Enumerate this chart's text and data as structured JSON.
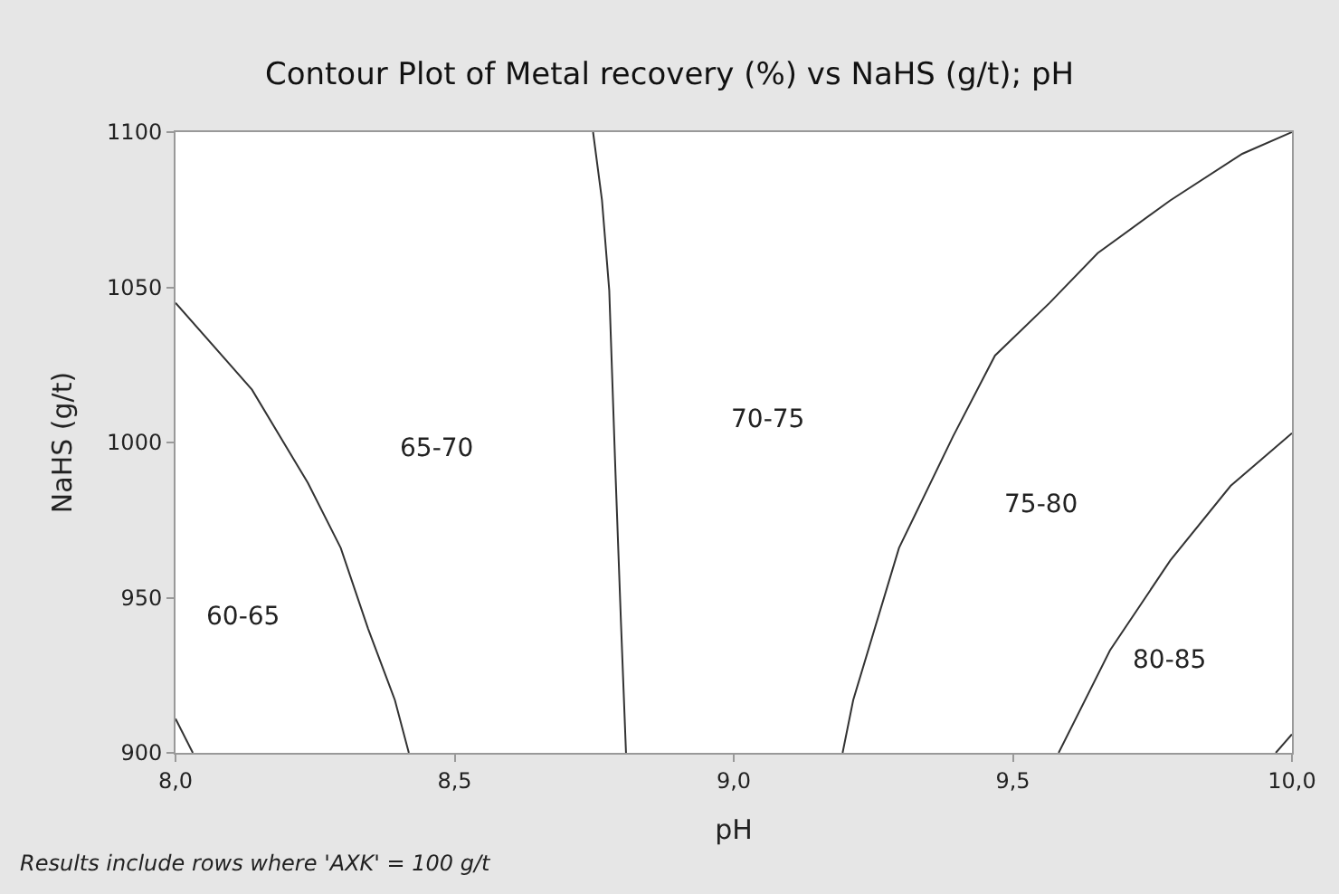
{
  "chart_data": {
    "type": "line",
    "title": "Contour Plot of Metal recovery (%) vs NaHS (g/t); pH",
    "xlabel": "pH",
    "ylabel": "NaHS (g/t)",
    "xlim": [
      8,
      10
    ],
    "ylim": [
      900,
      1100
    ],
    "xticks": [
      {
        "value": 8,
        "label": "8,0"
      },
      {
        "value": 8.5,
        "label": "8,5"
      },
      {
        "value": 9,
        "label": "9,0"
      },
      {
        "value": 9.5,
        "label": "9,5"
      },
      {
        "value": 10,
        "label": "10,0"
      }
    ],
    "yticks": [
      900,
      950,
      1000,
      1050,
      1100
    ],
    "marker": "none",
    "line_style": "solid",
    "series": [
      {
        "color": "#333333",
        "x": [
          8.0,
          8.031
        ],
        "values": [
          911,
          900
        ]
      },
      {
        "color": "#333333",
        "x": [
          8.0,
          8.137,
          8.237,
          8.296,
          8.345,
          8.393,
          8.418
        ],
        "values": [
          1045,
          1017,
          987,
          966,
          940,
          917,
          900
        ]
      },
      {
        "color": "#333333",
        "x": [
          8.748,
          8.764,
          8.777,
          8.788,
          8.798,
          8.807
        ],
        "values": [
          1100,
          1078,
          1049,
          991,
          942,
          900
        ]
      },
      {
        "color": "#333333",
        "x": [
          9.195,
          9.214,
          9.296,
          9.393,
          9.468,
          9.566,
          9.652,
          9.782,
          9.911,
          10.0
        ],
        "values": [
          900,
          917,
          966,
          1002,
          1028,
          1045,
          1061,
          1078,
          1093,
          1100
        ]
      },
      {
        "color": "#333333",
        "x": [
          9.582,
          9.674,
          9.782,
          9.89,
          10.0
        ],
        "values": [
          900,
          933,
          962,
          986,
          1003
        ]
      },
      {
        "color": "#333333",
        "x": [
          9.971,
          10.0
        ],
        "values": [
          900,
          906
        ]
      }
    ],
    "annotations": [
      "60-65",
      "65-70",
      "70-75",
      "75-80",
      "80-85",
      "Results include rows where 'AXK' = 100 g/t"
    ]
  }
}
